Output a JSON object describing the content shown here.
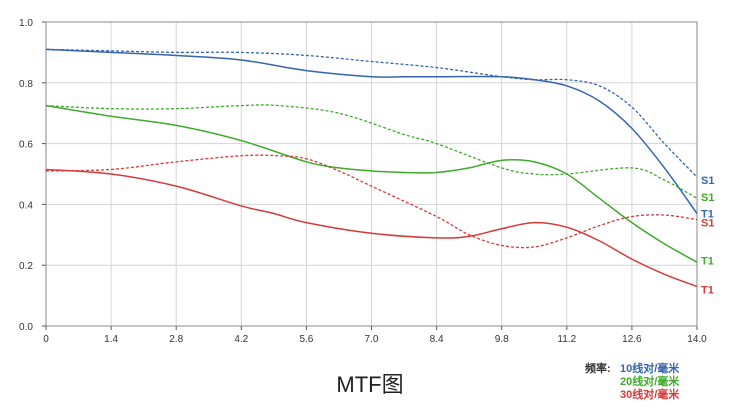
{
  "chart_data": {
    "type": "line",
    "title": "MTF图",
    "xlim": [
      0,
      14
    ],
    "ylim": [
      0,
      1
    ],
    "x_ticks": [
      "0",
      "1.4",
      "2.8",
      "4.2",
      "5.6",
      "7.0",
      "8.4",
      "9.8",
      "11.2",
      "12.6",
      "14.0"
    ],
    "y_ticks": [
      "0.0",
      "0.2",
      "0.4",
      "0.6",
      "0.8",
      "1.0"
    ],
    "grid": true,
    "legend": {
      "title": "频率:",
      "entries": [
        {
          "label": "10线对/毫米",
          "color": "#3565b0"
        },
        {
          "label": "20线对/毫米",
          "color": "#3faa2c"
        },
        {
          "label": "30线对/毫米",
          "color": "#d63a3a"
        }
      ]
    },
    "series": [
      {
        "name": "S1",
        "freq": "10线对/毫米",
        "color": "#3565b0",
        "dash": true,
        "points": [
          [
            0,
            0.91
          ],
          [
            1.4,
            0.905
          ],
          [
            2.8,
            0.9
          ],
          [
            4.2,
            0.9
          ],
          [
            5.6,
            0.89
          ],
          [
            7,
            0.87
          ],
          [
            8.4,
            0.85
          ],
          [
            9.8,
            0.82
          ],
          [
            10.5,
            0.81
          ],
          [
            11.2,
            0.81
          ],
          [
            11.9,
            0.79
          ],
          [
            12.6,
            0.72
          ],
          [
            13.3,
            0.6
          ],
          [
            14,
            0.49
          ]
        ]
      },
      {
        "name": "T1",
        "freq": "10线对/毫米",
        "color": "#3565b0",
        "dash": false,
        "points": [
          [
            0,
            0.91
          ],
          [
            1.4,
            0.9
          ],
          [
            2.8,
            0.89
          ],
          [
            4.2,
            0.875
          ],
          [
            5.6,
            0.84
          ],
          [
            7,
            0.82
          ],
          [
            7.7,
            0.82
          ],
          [
            8.4,
            0.82
          ],
          [
            9.8,
            0.82
          ],
          [
            10.5,
            0.81
          ],
          [
            11.2,
            0.79
          ],
          [
            11.9,
            0.74
          ],
          [
            12.6,
            0.65
          ],
          [
            13.3,
            0.52
          ],
          [
            14,
            0.37
          ]
        ]
      },
      {
        "name": "S1",
        "freq": "20线对/毫米",
        "color": "#3faa2c",
        "dash": true,
        "points": [
          [
            0,
            0.725
          ],
          [
            1.4,
            0.715
          ],
          [
            2.8,
            0.715
          ],
          [
            4.2,
            0.725
          ],
          [
            5,
            0.725
          ],
          [
            6.3,
            0.7
          ],
          [
            7.7,
            0.63
          ],
          [
            8.4,
            0.6
          ],
          [
            9.8,
            0.52
          ],
          [
            10.5,
            0.5
          ],
          [
            11.2,
            0.5
          ],
          [
            12.6,
            0.52
          ],
          [
            13.3,
            0.48
          ],
          [
            14,
            0.42
          ]
        ]
      },
      {
        "name": "T1",
        "freq": "20线对/毫米",
        "color": "#3faa2c",
        "dash": false,
        "points": [
          [
            0,
            0.725
          ],
          [
            1.4,
            0.69
          ],
          [
            2.8,
            0.66
          ],
          [
            4.2,
            0.61
          ],
          [
            5.6,
            0.54
          ],
          [
            6.3,
            0.52
          ],
          [
            7,
            0.51
          ],
          [
            7.7,
            0.505
          ],
          [
            8.4,
            0.505
          ],
          [
            9.1,
            0.52
          ],
          [
            9.8,
            0.545
          ],
          [
            10.5,
            0.54
          ],
          [
            11.2,
            0.5
          ],
          [
            11.9,
            0.42
          ],
          [
            12.6,
            0.34
          ],
          [
            13.3,
            0.27
          ],
          [
            14,
            0.21
          ]
        ]
      },
      {
        "name": "S1",
        "freq": "30线对/毫米",
        "color": "#d63a3a",
        "dash": true,
        "points": [
          [
            0,
            0.51
          ],
          [
            1.4,
            0.515
          ],
          [
            2.8,
            0.54
          ],
          [
            4.2,
            0.56
          ],
          [
            5,
            0.56
          ],
          [
            5.6,
            0.55
          ],
          [
            6.3,
            0.51
          ],
          [
            7,
            0.46
          ],
          [
            8.4,
            0.36
          ],
          [
            9.1,
            0.3
          ],
          [
            9.8,
            0.265
          ],
          [
            10.5,
            0.26
          ],
          [
            11.2,
            0.29
          ],
          [
            11.9,
            0.33
          ],
          [
            12.6,
            0.36
          ],
          [
            13.3,
            0.365
          ],
          [
            14,
            0.35
          ]
        ]
      },
      {
        "name": "T1",
        "freq": "30线对/毫米",
        "color": "#d63a3a",
        "dash": false,
        "points": [
          [
            0,
            0.515
          ],
          [
            1.4,
            0.5
          ],
          [
            2.8,
            0.46
          ],
          [
            4.2,
            0.395
          ],
          [
            4.9,
            0.37
          ],
          [
            5.6,
            0.34
          ],
          [
            7,
            0.305
          ],
          [
            8.4,
            0.29
          ],
          [
            9.1,
            0.295
          ],
          [
            9.8,
            0.32
          ],
          [
            10.5,
            0.34
          ],
          [
            11.2,
            0.325
          ],
          [
            11.9,
            0.28
          ],
          [
            12.6,
            0.22
          ],
          [
            13.3,
            0.17
          ],
          [
            14,
            0.13
          ]
        ]
      }
    ],
    "end_labels": [
      {
        "text": "S1",
        "color": "#3565b0",
        "y": 0.48
      },
      {
        "text": "S1",
        "color": "#3faa2c",
        "y": 0.425
      },
      {
        "text": "T1",
        "color": "#3565b0",
        "y": 0.37
      },
      {
        "text": "S1",
        "color": "#d63a3a",
        "y": 0.34
      },
      {
        "text": "T1",
        "color": "#3faa2c",
        "y": 0.215
      },
      {
        "text": "T1",
        "color": "#d63a3a",
        "y": 0.12
      }
    ]
  }
}
